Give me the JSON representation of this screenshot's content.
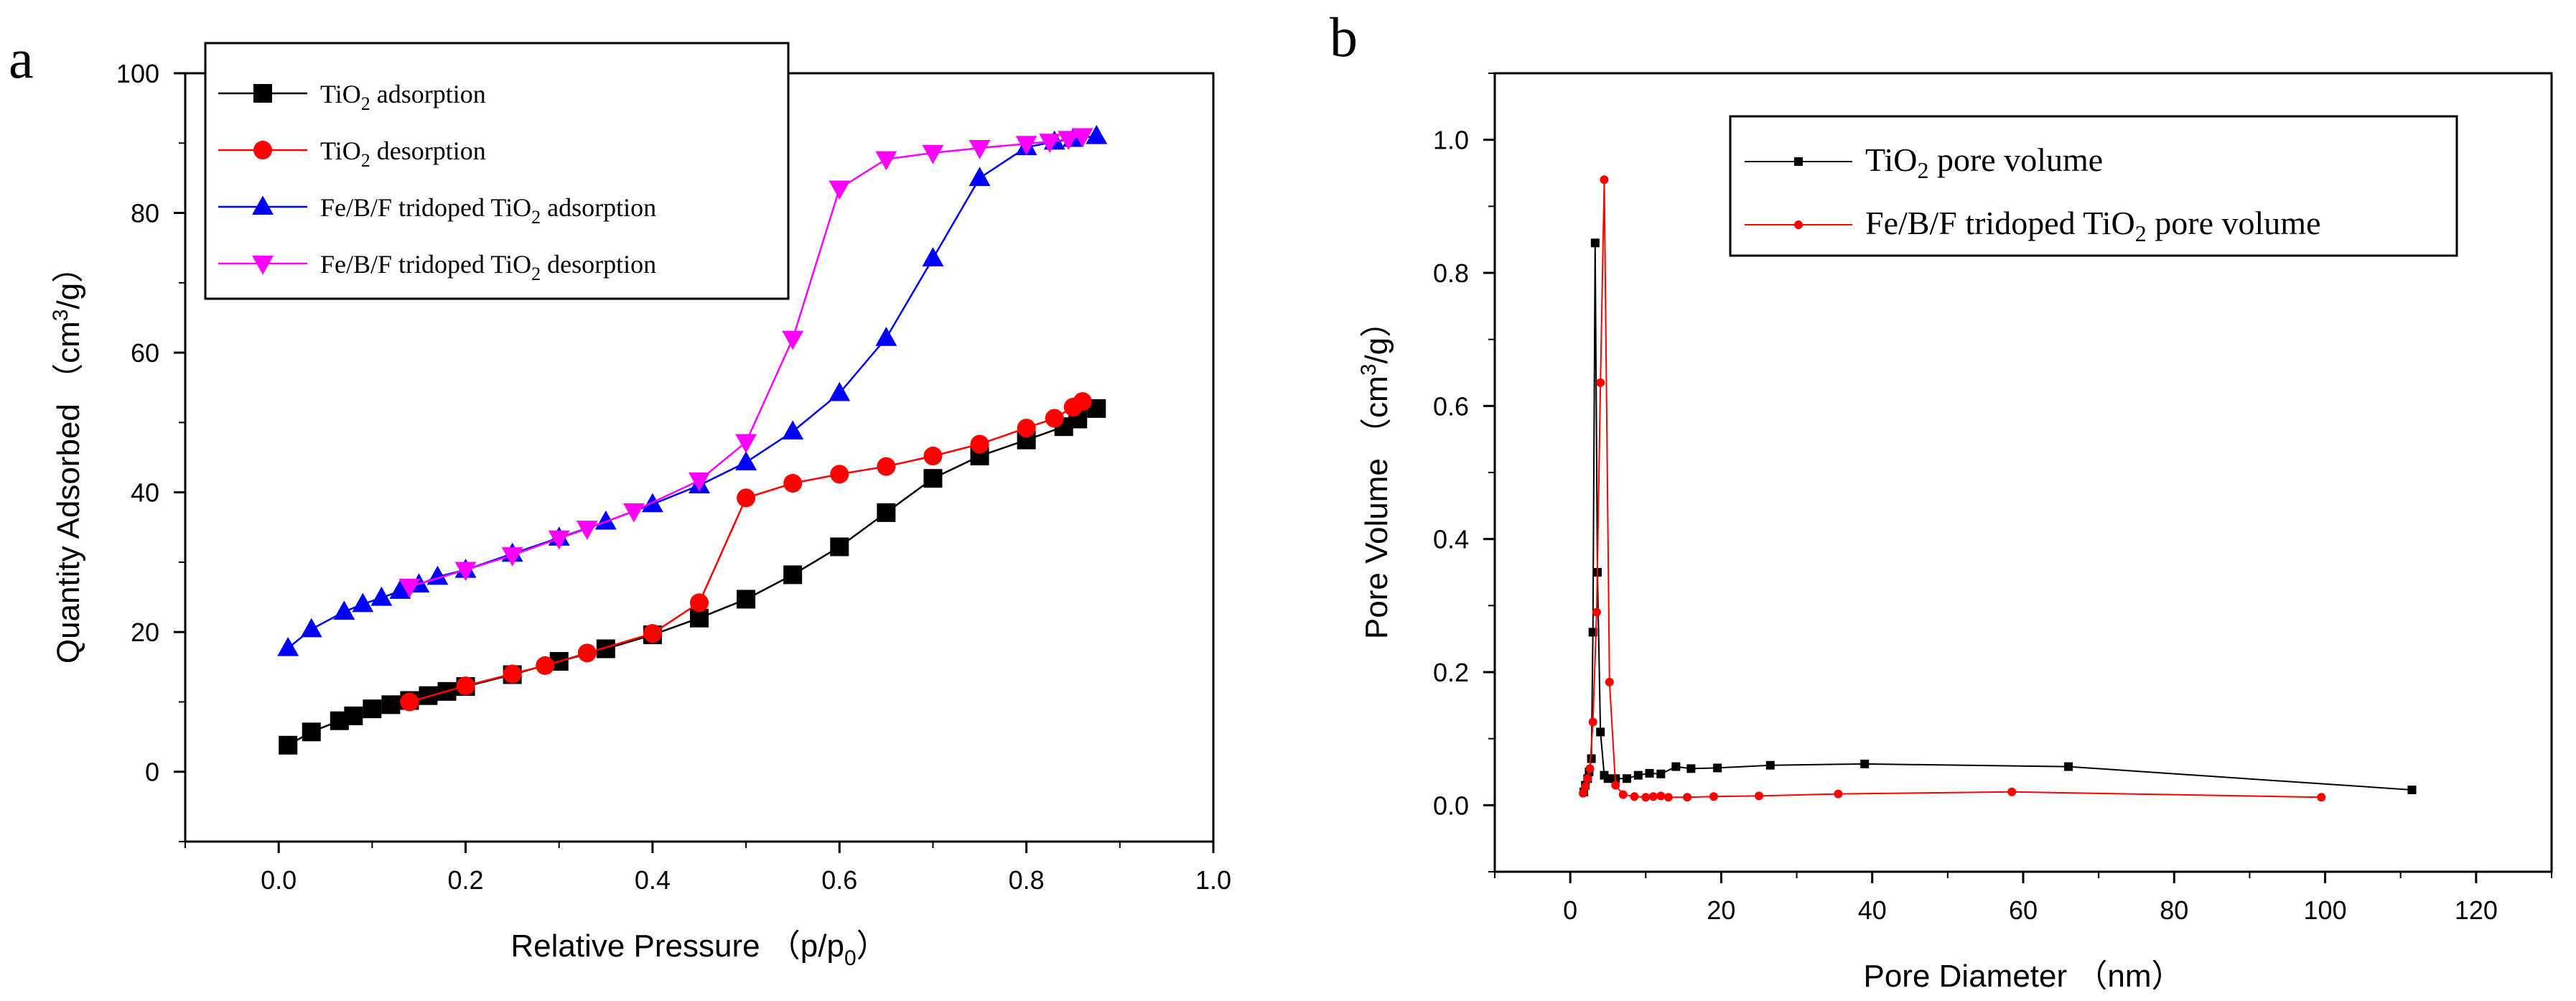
{
  "chart_data": [
    {
      "panel_label": "a",
      "type": "line",
      "xlabel": "Relative Pressure （p/p",
      "xlabel_sub": "0",
      "xlabel_end": "）",
      "ylabel": "Quantity Adsorbed （cm",
      "ylabel_sup": "3",
      "ylabel_end": "/g）",
      "xlim": [
        -0.1,
        1.0
      ],
      "ylim": [
        -10,
        100
      ],
      "xticks": [
        0.0,
        0.2,
        0.4,
        0.6,
        0.8,
        1.0
      ],
      "xticklabels": [
        "0.0",
        "0.2",
        "0.4",
        "0.6",
        "0.8",
        "1.0"
      ],
      "yticks": [
        0,
        20,
        40,
        60,
        80,
        100
      ],
      "yticklabels": [
        "0",
        "20",
        "40",
        "60",
        "80",
        "100"
      ],
      "legend_position": "top-left",
      "series": [
        {
          "name": "TiO2 adsorption",
          "legend": {
            "pre": "TiO",
            "sub": "2",
            "post": " adsorption"
          },
          "color": "#000000",
          "marker": "square",
          "x": [
            0.01,
            0.035,
            0.065,
            0.08,
            0.1,
            0.12,
            0.14,
            0.16,
            0.18,
            0.2,
            0.25,
            0.3,
            0.35,
            0.4,
            0.45,
            0.5,
            0.55,
            0.6,
            0.65,
            0.7,
            0.75,
            0.8,
            0.84,
            0.855,
            0.875
          ],
          "y": [
            3.8,
            5.7,
            7.3,
            8.0,
            9.0,
            9.6,
            10.2,
            10.9,
            11.5,
            12.2,
            13.9,
            15.8,
            17.6,
            19.6,
            22.0,
            24.7,
            28.2,
            32.2,
            37.1,
            42.0,
            45.2,
            47.5,
            49.4,
            50.5,
            52.0
          ]
        },
        {
          "name": "TiO2 desorption",
          "legend": {
            "pre": "TiO",
            "sub": "2",
            "post": " desorption"
          },
          "color": "#ff0000",
          "marker": "circle",
          "x": [
            0.14,
            0.2,
            0.25,
            0.285,
            0.33,
            0.4,
            0.45,
            0.5,
            0.55,
            0.6,
            0.65,
            0.7,
            0.75,
            0.8,
            0.83,
            0.85,
            0.86
          ],
          "y": [
            10.0,
            12.3,
            14.0,
            15.2,
            17.0,
            19.8,
            24.2,
            39.2,
            41.3,
            42.6,
            43.7,
            45.2,
            46.9,
            49.2,
            50.6,
            52.2,
            53.0
          ]
        },
        {
          "name": "Fe/B/F tridoped TiO2 adsorption",
          "legend": {
            "pre": "Fe/B/F tridoped TiO",
            "sub": "2",
            "post": " adsorption"
          },
          "color": "#0000ff",
          "marker": "triangle-up",
          "x": [
            0.01,
            0.035,
            0.07,
            0.09,
            0.11,
            0.13,
            0.15,
            0.17,
            0.2,
            0.25,
            0.3,
            0.35,
            0.4,
            0.45,
            0.5,
            0.55,
            0.6,
            0.65,
            0.7,
            0.75,
            0.8,
            0.83,
            0.85,
            0.875
          ],
          "y": [
            17.7,
            20.4,
            22.9,
            24.0,
            24.9,
            25.9,
            26.8,
            27.9,
            28.9,
            31.2,
            33.5,
            35.8,
            38.3,
            41.0,
            44.3,
            48.7,
            54.2,
            62.1,
            73.5,
            85.0,
            89.4,
            90.2,
            90.6,
            91.0
          ]
        },
        {
          "name": "Fe/B/F tridoped TiO2 desorption",
          "legend": {
            "pre": "Fe/B/F tridoped TiO",
            "sub": "2",
            "post": " desorption"
          },
          "color": "#ff00ff",
          "marker": "triangle-down",
          "x": [
            0.14,
            0.2,
            0.25,
            0.3,
            0.33,
            0.38,
            0.45,
            0.5,
            0.55,
            0.6,
            0.65,
            0.7,
            0.75,
            0.8,
            0.825,
            0.845,
            0.86
          ],
          "y": [
            26.5,
            28.9,
            31.0,
            33.4,
            34.8,
            37.3,
            41.7,
            47.2,
            62.0,
            83.5,
            87.7,
            88.6,
            89.3,
            89.9,
            90.2,
            90.6,
            91.0
          ]
        }
      ]
    },
    {
      "panel_label": "b",
      "type": "line",
      "xlabel": "Pore Diameter （nm）",
      "ylabel": "Pore Volume （cm",
      "ylabel_sup": "3",
      "ylabel_end": "/g）",
      "xlim": [
        -10,
        130
      ],
      "ylim": [
        -0.1,
        1.1
      ],
      "xticks": [
        0,
        20,
        40,
        60,
        80,
        100,
        120
      ],
      "xticklabels": [
        "0",
        "20",
        "40",
        "60",
        "80",
        "100",
        "120"
      ],
      "yticks": [
        0.0,
        0.2,
        0.4,
        0.6,
        0.8,
        1.0
      ],
      "yticklabels": [
        "0.0",
        "0.2",
        "0.4",
        "0.6",
        "0.8",
        "1.0"
      ],
      "legend_position": "top-right",
      "series": [
        {
          "name": "TiO2 pore volume",
          "legend": {
            "pre": "TiO",
            "sub": "2",
            "post": " pore volume"
          },
          "color": "#000000",
          "marker": "square",
          "x": [
            1.8,
            2.0,
            2.3,
            2.5,
            2.8,
            3.0,
            3.3,
            3.6,
            4.0,
            4.5,
            5.0,
            6.0,
            7.5,
            9.0,
            10.5,
            12.0,
            14.0,
            16.0,
            19.5,
            26.5,
            39.0,
            66.0,
            111.5
          ],
          "y": [
            0.02,
            0.03,
            0.04,
            0.05,
            0.07,
            0.26,
            0.845,
            0.35,
            0.11,
            0.045,
            0.04,
            0.04,
            0.04,
            0.045,
            0.048,
            0.047,
            0.058,
            0.055,
            0.056,
            0.06,
            0.062,
            0.058,
            0.023
          ]
        },
        {
          "name": "Fe/B/F tridoped TiO2 pore volume",
          "legend": {
            "pre": "Fe/B/F tridoped TiO",
            "sub": "2",
            "post": " pore volume"
          },
          "color": "#ff0000",
          "marker": "circle",
          "x": [
            1.7,
            2.0,
            2.3,
            2.6,
            3.0,
            3.5,
            4.0,
            4.5,
            5.2,
            6.0,
            7.0,
            8.5,
            10.0,
            11.0,
            12.0,
            13.0,
            15.5,
            19.0,
            25.0,
            35.5,
            58.5,
            99.5
          ],
          "y": [
            0.018,
            0.028,
            0.04,
            0.055,
            0.125,
            0.29,
            0.635,
            0.94,
            0.185,
            0.03,
            0.016,
            0.013,
            0.012,
            0.013,
            0.014,
            0.012,
            0.012,
            0.013,
            0.014,
            0.017,
            0.02,
            0.012
          ]
        }
      ]
    }
  ]
}
